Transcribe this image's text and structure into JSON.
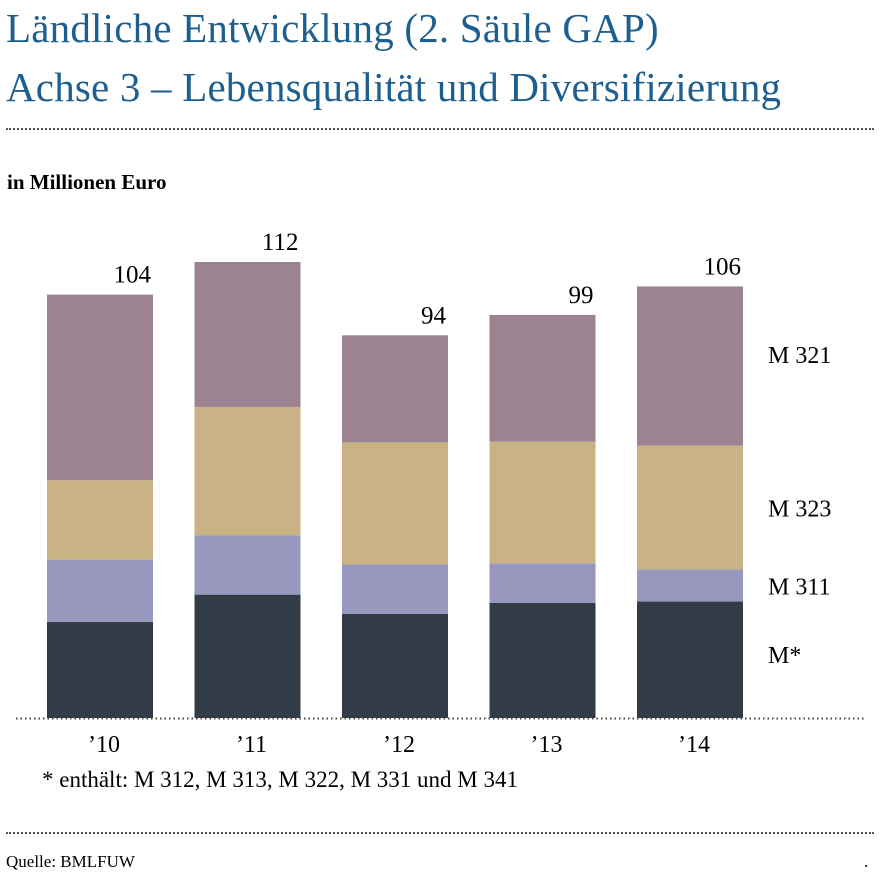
{
  "header": {
    "title_line1": "Ländliche Entwicklung (2. Säule GAP)",
    "title_line2": "Achse 3 – Lebensqualität und Diversifizierung"
  },
  "footnote": "* enthält: M 312, M 313, M 322, M 331 und M 341",
  "source": "Quelle: BMLFUW",
  "corner_mark": ".",
  "chart_data": {
    "type": "bar",
    "stacked": true,
    "ylabel": "in Millionen Euro",
    "categories": [
      "’10",
      "’11",
      "’12",
      "’13",
      "’14"
    ],
    "totals": [
      104,
      112,
      94,
      99,
      106
    ],
    "series": [
      {
        "name": "M*",
        "values": [
          23.6,
          30.3,
          25.6,
          28.3,
          28.6
        ],
        "color": "#313c47"
      },
      {
        "name": "M 311",
        "values": [
          15.3,
          14.6,
          12.1,
          9.7,
          7.9
        ],
        "color": "#9897be"
      },
      {
        "name": "M 323",
        "values": [
          19.5,
          31.5,
          30.0,
          29.9,
          30.4
        ],
        "color": "#c9b384"
      },
      {
        "name": "M 321",
        "values": [
          45.6,
          35.6,
          26.3,
          31.1,
          39.1
        ],
        "color": "#9b8392"
      }
    ],
    "ylim": [
      0,
      112
    ],
    "grid": false,
    "legend_placement": "right"
  }
}
